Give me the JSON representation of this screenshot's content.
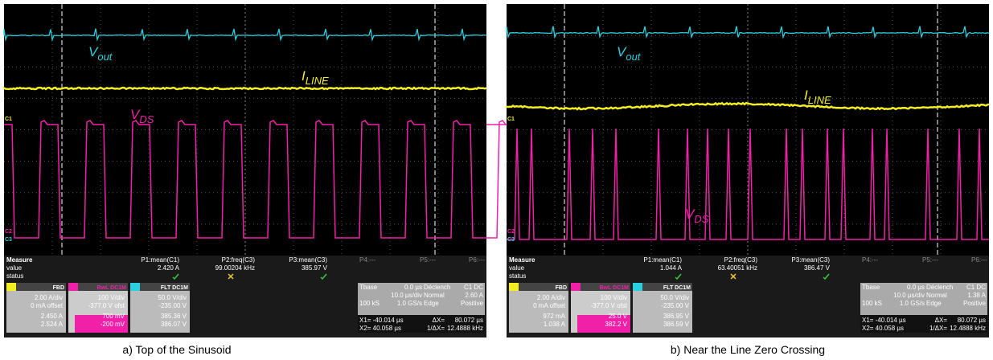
{
  "panels": [
    {
      "caption": "a) Top of the Sinusoid",
      "labels": {
        "vout": {
          "main": "V",
          "sub": "out"
        },
        "iline": {
          "main": "I",
          "sub": "LINE"
        },
        "vds": {
          "main": "V",
          "sub": "DS"
        }
      },
      "channel_tags": [
        "C1",
        "C2",
        "C3"
      ],
      "measure": {
        "header": [
          "Measure",
          "P1:mean(C1)",
          "P2:freq(C3)",
          "P3:mean(C3)",
          "P4:---",
          "P5:---",
          "P6:---"
        ],
        "value": [
          "value",
          "2.420 A",
          "99.00204 kHz",
          "385.97 V"
        ],
        "status": "status"
      },
      "channels": [
        {
          "tag": "FBD",
          "lines": [
            "2.00 A/div",
            "0 mA offset",
            "2.450 A",
            "2.524 A"
          ]
        },
        {
          "tag": "BwL DC1M",
          "lines": [
            "100 V/div",
            "-377.0 V ofst",
            "700 mV",
            "-200 mV"
          ]
        },
        {
          "tag": "FLT DC1M",
          "lines": [
            "50.0 V/div",
            "-235.00 V",
            "385.36 V",
            "386.07 V"
          ]
        }
      ],
      "timebase": {
        "rows": [
          [
            "Tbase",
            "0.0 µs",
            "Déclench",
            "C1 DC"
          ],
          [
            "",
            "10.0 µs/div",
            "Normal",
            "2.60 A"
          ],
          [
            "100 kS",
            "1.0 GS/s",
            "Edge",
            "Positive"
          ]
        ],
        "cursors": [
          [
            "X1= -40.014 µs",
            "ΔX=",
            "80.072 µs"
          ],
          [
            "X2= 40.058 µs",
            "1/ΔX=",
            "12.4888 kHz"
          ]
        ]
      }
    },
    {
      "caption": "b) Near the Line Zero Crossing",
      "labels": {
        "vout": {
          "main": "V",
          "sub": "out"
        },
        "iline": {
          "main": "I",
          "sub": "LINE"
        },
        "vds": {
          "main": "V",
          "sub": "DS"
        }
      },
      "channel_tags": [
        "C1",
        "C2",
        "C3"
      ],
      "measure": {
        "header": [
          "Measure",
          "P1:mean(C1)",
          "P2:freq(C3)",
          "P3:mean(C3)",
          "P4:---",
          "P5:---",
          "P6:---"
        ],
        "value": [
          "value",
          "1.044 A",
          "63.40051 kHz",
          "386.47 V"
        ],
        "status": "status"
      },
      "channels": [
        {
          "tag": "FBD",
          "lines": [
            "2.00 A/div",
            "0 mA offset",
            "972 mA",
            "1.038 A"
          ]
        },
        {
          "tag": "BwL DC1M",
          "lines": [
            "100 V/div",
            "-377.0 V ofst",
            "25.0 V",
            "382.2 V"
          ]
        },
        {
          "tag": "FLT DC1M",
          "lines": [
            "50.0 V/div",
            "-235.00 V",
            "386.95 V",
            "386.59 V"
          ]
        }
      ],
      "timebase": {
        "rows": [
          [
            "Tbase",
            "0.0 µs",
            "Déclench",
            "C1 DC"
          ],
          [
            "",
            "10.0 µs/div",
            "Normal",
            "1.38 A"
          ],
          [
            "100 kS",
            "1.0 GS/s",
            "Edge",
            "Positive"
          ]
        ],
        "cursors": [
          [
            "X1= -40.014 µs",
            "ΔX=",
            "80.072 µs"
          ],
          [
            "X2= 40.058 µs",
            "1/ΔX=",
            "12.4888 kHz"
          ]
        ]
      }
    }
  ]
}
